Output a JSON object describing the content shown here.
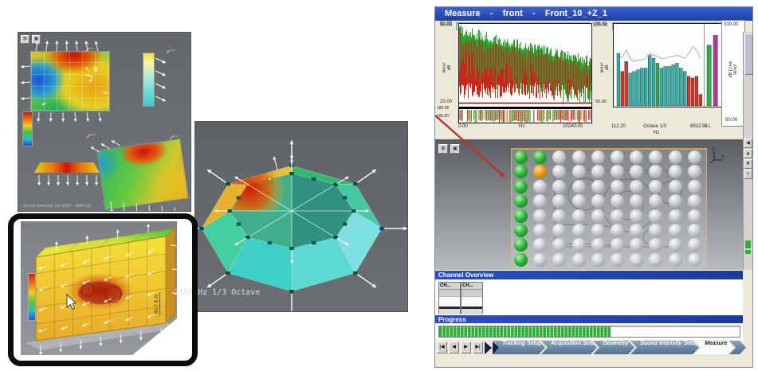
{
  "left_composite": {
    "viewport_caption": "Sound Intensity 1/3 3150 - 3400 Hz",
    "octagon_caption": "3150 Hz 1/3 Octave",
    "box_scale_value": "90.7",
    "box_scale_unit": "B Ar"
  },
  "app": {
    "title": "Measure    -    front    -    Front_10_+Z_1",
    "range_row": {
      "left_value": "90.00",
      "mid_value": "100.00",
      "right_value": "100.00"
    },
    "spectrum_plot": {
      "y_max": "90.00",
      "y_min": "20.00",
      "y_unit": "W/m²",
      "y_db": "dB",
      "phase_max": "180.00",
      "phase_min": "-180.00",
      "x_min": "0.00",
      "x_unit": "Hz",
      "x_max": "10240.00"
    },
    "octave_plot": {
      "y_max": "100.00",
      "y_min": "50.00",
      "y_unit": "W/m²",
      "y_db": "dB",
      "x_min": "112.20",
      "x_mid": "Octave 1/3",
      "x_unit": "Hz",
      "x_max": "8912.51",
      "x_extra": "A L",
      "y2_max": "100.00",
      "y2_min": "50.00",
      "y2_label_a": "dB [ ] Hz",
      "y2_label_b": "W/m²"
    },
    "grid_view": {
      "rows": 8,
      "cols": 10,
      "done_column": 0,
      "extra_done": [
        [
          0,
          1
        ]
      ],
      "current": [
        1,
        1
      ]
    },
    "channel_overview": {
      "title": "Channel Overview",
      "channels": [
        "CH...",
        "CH..."
      ]
    },
    "progress": {
      "title": "Progress",
      "percent": 57
    },
    "nav": {
      "tabs": [
        {
          "label": "Tracking Setup"
        },
        {
          "label": "Acquisition Setup"
        },
        {
          "label": "Geometry"
        },
        {
          "label": "Sound Intensity Setup"
        },
        {
          "label": "Measure"
        }
      ],
      "active": "Measure"
    }
  },
  "colors": {
    "title_blue": "#2a4fc0",
    "header_blue": "#2246b4",
    "progress_green": "#2fae3a",
    "bar_teal": "#2fb3ab",
    "bar_red": "#d93425",
    "bar_green": "#2fae4e",
    "bar_magenta": "#b2399b",
    "arrow_red": "#b8342a",
    "done_green": "#2db83a",
    "current_orange": "#ef9c1e"
  },
  "chart_data": [
    {
      "type": "line",
      "name": "instantaneous-spectrum",
      "ylabel": "W/m² dB",
      "ylim": [
        20,
        90
      ],
      "xlabel": "Hz",
      "xlim": [
        0,
        10240
      ],
      "series": [
        {
          "name": "channel-green",
          "color": "#25a82f",
          "trend": "noisy decline ~82 to ~48 dB"
        },
        {
          "name": "channel-red",
          "color": "#c8281c",
          "trend": "noisy decline ~78 to ~45 dB"
        }
      ],
      "phase_strip": {
        "ylim": [
          -180,
          180
        ]
      }
    },
    {
      "type": "bar",
      "name": "third-octave-intensity",
      "ylabel": "W/m² dB",
      "ylim": [
        50,
        100
      ],
      "x_start": "112.20",
      "x_end": "8912.51",
      "x_axis": "Octave 1/3 Hz",
      "values": [
        82,
        71,
        77,
        70,
        71,
        72,
        73,
        73,
        81,
        79,
        76,
        73,
        74,
        74,
        75,
        76,
        73,
        71,
        68,
        67,
        68,
        57
      ],
      "colors": [
        "teal",
        "red",
        "red",
        "teal",
        "teal",
        "teal",
        "teal",
        "teal",
        "teal",
        "teal",
        "green",
        "teal",
        "teal",
        "teal",
        "teal",
        "teal",
        "teal",
        "teal",
        "red",
        "red",
        "red",
        "red"
      ],
      "overlay_line": [
        78,
        80,
        84,
        79,
        77,
        78,
        78,
        79,
        82,
        81,
        80,
        79,
        79,
        80,
        80,
        81,
        80,
        79,
        82,
        86,
        84,
        79
      ],
      "overall": {
        "A": 87,
        "L": 93
      }
    }
  ]
}
